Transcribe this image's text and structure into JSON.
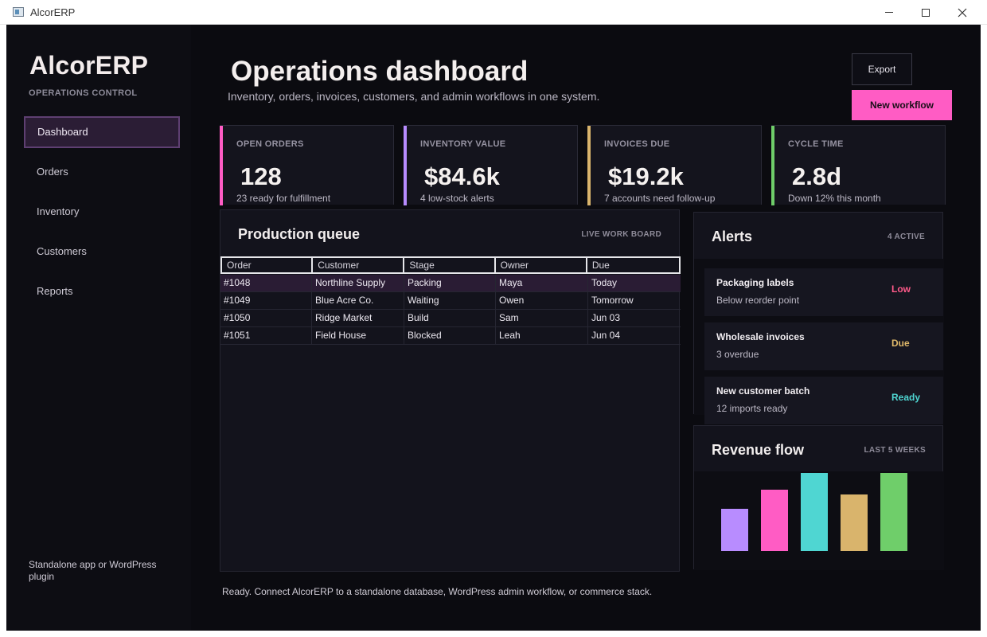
{
  "window": {
    "title": "AlcorERP"
  },
  "sidebar": {
    "brand": "AlcorERP",
    "subtitle": "OPERATIONS CONTROL",
    "items": [
      {
        "label": "Dashboard",
        "active": true
      },
      {
        "label": "Orders"
      },
      {
        "label": "Inventory"
      },
      {
        "label": "Customers"
      },
      {
        "label": "Reports"
      }
    ],
    "footer": "Standalone app or WordPress plugin"
  },
  "header": {
    "title": "Operations dashboard",
    "subtitle": "Inventory, orders, invoices, customers, and admin workflows in one system.",
    "export_label": "Export",
    "new_label": "New workflow"
  },
  "stats": [
    {
      "label": "OPEN ORDERS",
      "value": "128",
      "note": "23 ready for fulfillment",
      "color": "#ff5cc4"
    },
    {
      "label": "INVENTORY VALUE",
      "value": "$84.6k",
      "note": "4 low-stock alerts",
      "color": "#b88cff"
    },
    {
      "label": "INVOICES DUE",
      "value": "$19.2k",
      "note": "7 accounts need follow-up",
      "color": "#d9b46c"
    },
    {
      "label": "CYCLE TIME",
      "value": "2.8d",
      "note": "Down 12% this month",
      "color": "#6fce6a"
    }
  ],
  "queue": {
    "title": "Production queue",
    "tag": "LIVE WORK BOARD",
    "columns": [
      "Order",
      "Customer",
      "Stage",
      "Owner",
      "Due"
    ],
    "rows": [
      [
        "#1048",
        "Northline Supply",
        "Packing",
        "Maya",
        "Today"
      ],
      [
        "#1049",
        "Blue Acre Co.",
        "Waiting",
        "Owen",
        "Tomorrow"
      ],
      [
        "#1050",
        "Ridge Market",
        "Build",
        "Sam",
        "Jun 03"
      ],
      [
        "#1051",
        "Field House",
        "Blocked",
        "Leah",
        "Jun 04"
      ]
    ],
    "selected_row": 0
  },
  "alerts": {
    "title": "Alerts",
    "tag": "4 ACTIVE",
    "items": [
      {
        "title": "Packaging labels",
        "sub": "Below reorder point",
        "status": "Low",
        "color": "#ff5a8a"
      },
      {
        "title": "Wholesale invoices",
        "sub": "3 overdue",
        "status": "Due",
        "color": "#e0b96a"
      },
      {
        "title": "New customer batch",
        "sub": "12 imports ready",
        "status": "Ready",
        "color": "#4fd6d2"
      }
    ]
  },
  "revenue": {
    "title": "Revenue flow",
    "tag": "LAST 5 WEEKS"
  },
  "chart_data": {
    "type": "bar",
    "values": [
      53,
      77,
      98,
      71,
      98
    ],
    "colors": [
      "#b88cff",
      "#ff5cc4",
      "#4fd6d2",
      "#d9b46c",
      "#6fce6a"
    ],
    "ylim": [
      0,
      100
    ]
  },
  "status": "Ready. Connect AlcorERP to a standalone database, WordPress admin workflow, or commerce stack."
}
